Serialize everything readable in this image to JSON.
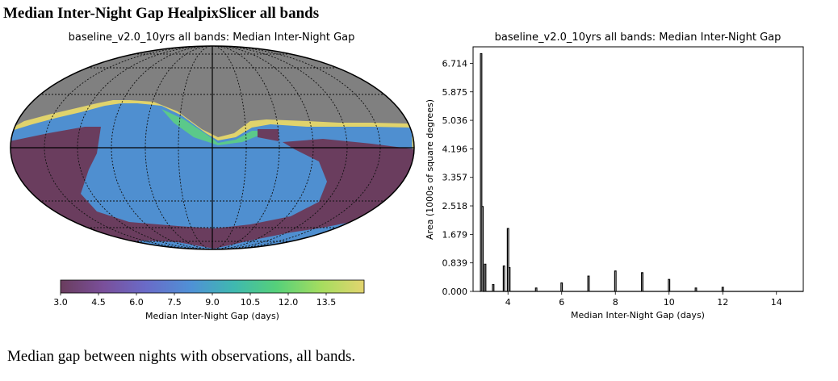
{
  "page": {
    "heading": "Median Inter-Night Gap HealpixSlicer all bands",
    "caption": "Median gap between nights with observations, all bands."
  },
  "chart_data": [
    {
      "type": "heatmap",
      "projection": "mollweide",
      "title": "baseline_v2.0_10yrs all bands: Median Inter-Night Gap",
      "colorbar": {
        "label": "Median Inter-Night Gap (days)",
        "range": [
          3.0,
          15.0
        ],
        "ticks": [
          "3.0",
          "4.5",
          "6.0",
          "7.5",
          "9.0",
          "10.5",
          "12.0",
          "13.5"
        ],
        "colormap": "viridis"
      },
      "masked_color": "#808080",
      "grid": true
    },
    {
      "type": "histogram-step",
      "title": "baseline_v2.0_10yrs all bands: Median Inter-Night Gap",
      "xlabel": "Median Inter-Night Gap (days)",
      "ylabel": "Area (1000s of square degrees)",
      "xlim": [
        2.7,
        15.0
      ],
      "ylim": [
        0.0,
        7.2
      ],
      "xticks": [
        "4",
        "6",
        "8",
        "10",
        "12",
        "14"
      ],
      "yticks": [
        "0.000",
        "0.839",
        "1.679",
        "2.518",
        "3.357",
        "4.196",
        "5.036",
        "5.875",
        "6.714"
      ],
      "line_color": "#000000",
      "peaks": [
        {
          "x": 3.0,
          "y": 7.0
        },
        {
          "x": 3.05,
          "y": 2.5
        },
        {
          "x": 3.15,
          "y": 0.8
        },
        {
          "x": 3.45,
          "y": 0.2
        },
        {
          "x": 3.85,
          "y": 0.75
        },
        {
          "x": 4.0,
          "y": 1.85
        },
        {
          "x": 4.05,
          "y": 0.7
        },
        {
          "x": 5.05,
          "y": 0.1
        },
        {
          "x": 6.0,
          "y": 0.25
        },
        {
          "x": 7.0,
          "y": 0.45
        },
        {
          "x": 8.0,
          "y": 0.6
        },
        {
          "x": 9.0,
          "y": 0.55
        },
        {
          "x": 10.0,
          "y": 0.35
        },
        {
          "x": 11.0,
          "y": 0.1
        },
        {
          "x": 12.0,
          "y": 0.12
        }
      ]
    }
  ]
}
